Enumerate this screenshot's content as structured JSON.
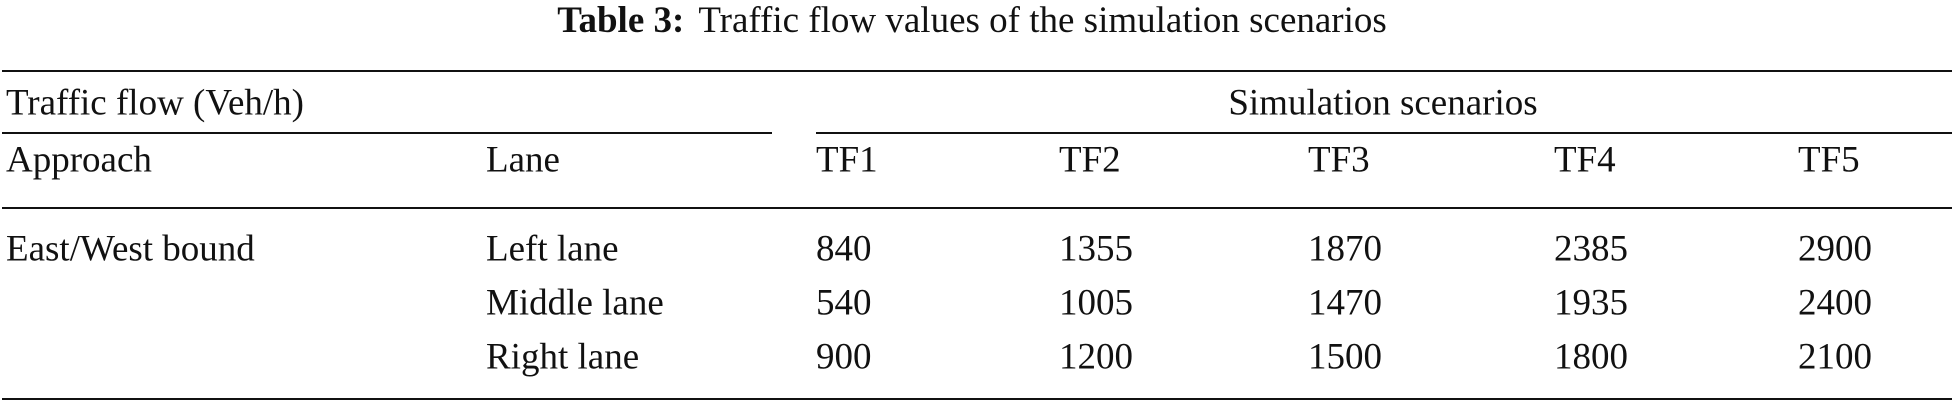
{
  "caption": {
    "label": "Table 3:",
    "text": "Traffic flow values of the simulation scenarios"
  },
  "table": {
    "header": {
      "row_group": "Traffic flow (Veh/h)",
      "col_group": "Simulation scenarios",
      "columns": [
        "Approach",
        "Lane",
        "TF1",
        "TF2",
        "TF3",
        "TF4",
        "TF5"
      ]
    },
    "groups": [
      {
        "approach": "East/West bound",
        "rows": [
          {
            "lane": "Left lane",
            "values": [
              840,
              1355,
              1870,
              2385,
              2900
            ]
          },
          {
            "lane": "Middle lane",
            "values": [
              540,
              1005,
              1470,
              1935,
              2400
            ]
          },
          {
            "lane": "Right lane",
            "values": [
              900,
              1200,
              1500,
              1800,
              2100
            ]
          }
        ]
      }
    ]
  }
}
